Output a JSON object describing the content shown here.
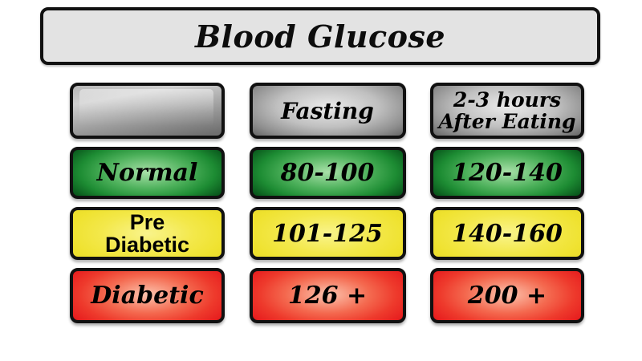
{
  "title": "Blood Glucose",
  "chart_data": {
    "type": "table",
    "title": "Blood Glucose",
    "columns": [
      "",
      "Fasting",
      "2-3 hours After Eating"
    ],
    "rows": [
      [
        "Normal",
        "80-100",
        "120-140"
      ],
      [
        "Pre Diabetic",
        "101-125",
        "140-160"
      ],
      [
        "Diabetic",
        "126 +",
        "200 +"
      ]
    ],
    "row_colors": [
      "#1d8c33",
      "#efe22f",
      "#ee3124"
    ],
    "header_color": "#9e9e9e",
    "title_background": "#e3e3e3",
    "border_color": "#111111",
    "text_color": "#000000"
  },
  "display": {
    "header_after_line1": "2-3 hours",
    "header_after_line2": "After Eating",
    "pre_label_line1": "Pre",
    "pre_label_line2": "Diabetic"
  }
}
